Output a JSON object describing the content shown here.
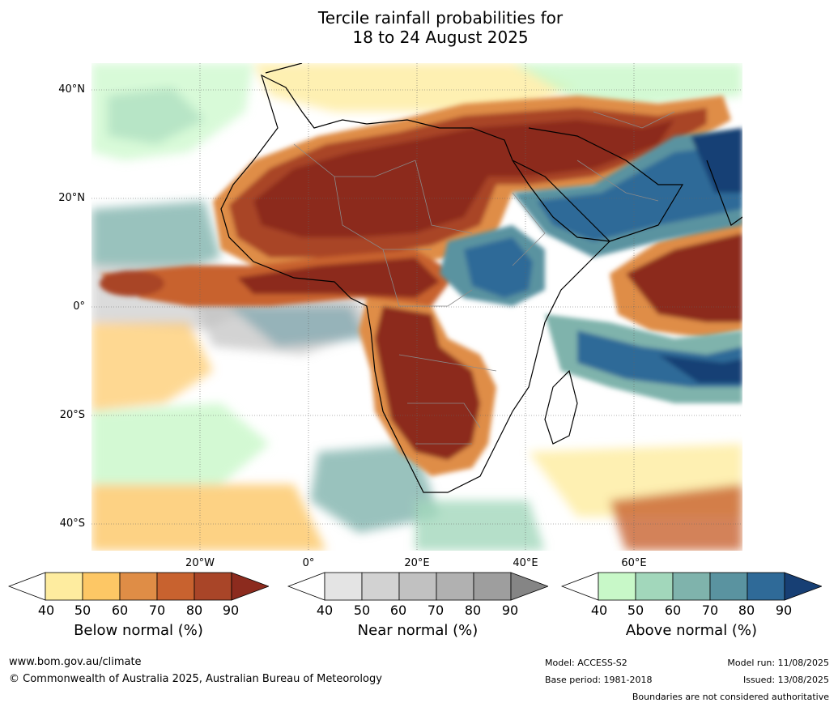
{
  "title_line1": "Tercile rainfall probabilities for",
  "title_line2": "18 to 24 August 2025",
  "map": {
    "lat_labels": [
      "40°N",
      "20°N",
      "0°",
      "20°S",
      "40°S"
    ],
    "lon_labels": [
      "20°W",
      "0°",
      "20°E",
      "40°E",
      "60°E"
    ],
    "gridlines": true
  },
  "colorbars": [
    {
      "id": "below",
      "title": "Below normal (%)",
      "ticks": [
        "40",
        "50",
        "60",
        "70",
        "80",
        "90"
      ],
      "colors": [
        "#ffffff",
        "#feec9f",
        "#fdc765",
        "#df8d46",
        "#c8622f",
        "#a94528",
        "#8c2b1e"
      ]
    },
    {
      "id": "near",
      "title": "Near normal (%)",
      "ticks": [
        "40",
        "50",
        "60",
        "70",
        "80",
        "90"
      ],
      "colors": [
        "#ffffff",
        "#e4e4e4",
        "#d2d2d2",
        "#c1c1c1",
        "#b1b1b1",
        "#9e9e9e",
        "#858585"
      ]
    },
    {
      "id": "above",
      "title": "Above normal (%)",
      "ticks": [
        "40",
        "50",
        "60",
        "70",
        "80",
        "90"
      ],
      "colors": [
        "#ffffff",
        "#c8f8c8",
        "#a2d7bb",
        "#7fb3ac",
        "#5a93a0",
        "#2f6a98",
        "#173f74"
      ]
    }
  ],
  "footer": {
    "website": "www.bom.gov.au/climate",
    "copyright": "© Commonwealth of Australia 2025, Australian Bureau of Meteorology",
    "model": "Model: ACCESS-S2",
    "base_period": "Base period: 1981-2018",
    "model_run": "Model run: 11/08/2025",
    "issued": "Issued: 13/08/2025",
    "boundaries": "Boundaries are not considered authoritative"
  }
}
